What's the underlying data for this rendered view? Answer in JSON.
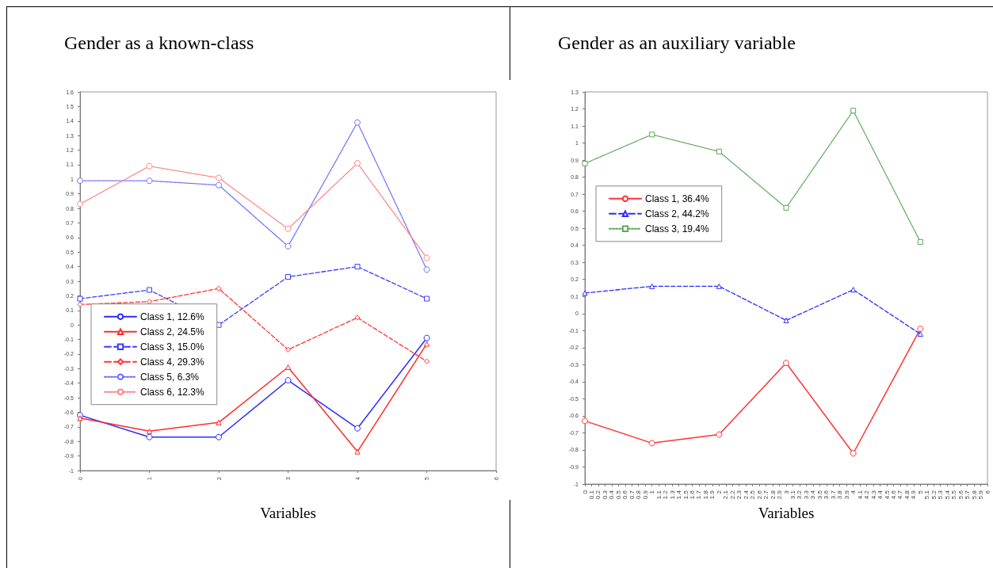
{
  "chart_data": [
    {
      "type": "line",
      "title": "Gender as a known-class",
      "xlabel": "Variables",
      "x": [
        0,
        1,
        2,
        3,
        4,
        5
      ],
      "xlim": [
        0,
        6
      ],
      "xticks": [
        0,
        1,
        2,
        3,
        4,
        5,
        6
      ],
      "ylim": [
        -1,
        1.6
      ],
      "yticks": [
        -1,
        -0.9,
        -0.8,
        -0.7,
        -0.6,
        -0.5,
        -0.4,
        -0.3,
        -0.2,
        -0.1,
        0,
        0.1,
        0.2,
        0.3,
        0.4,
        0.5,
        0.6,
        0.7,
        0.8,
        0.9,
        1,
        1.1,
        1.2,
        1.3,
        1.4,
        1.5,
        1.6
      ],
      "legend": "left",
      "series": [
        {
          "name": "Class 1, 12.6%",
          "color": "#2b2bff",
          "marker": "circle",
          "line_style": "solid",
          "values": [
            -0.62,
            -0.77,
            -0.77,
            -0.38,
            -0.71,
            -0.09
          ]
        },
        {
          "name": "Class 2, 24.5%",
          "color": "#ff2b2b",
          "marker": "triangle",
          "line_style": "solid",
          "values": [
            -0.64,
            -0.73,
            -0.67,
            -0.29,
            -0.87,
            -0.13
          ]
        },
        {
          "name": "Class 3, 15.0%",
          "color": "#3b3bff",
          "marker": "square",
          "line_style": "dashed",
          "values": [
            0.18,
            0.24,
            0.0,
            0.33,
            0.4,
            0.18
          ]
        },
        {
          "name": "Class 4, 29.3%",
          "color": "#ff3333",
          "marker": "diamond",
          "line_style": "dashed",
          "values": [
            0.14,
            0.16,
            0.25,
            -0.17,
            0.05,
            -0.25
          ]
        },
        {
          "name": "Class 5, 6.3%",
          "color": "#6a6aff",
          "marker": "circle",
          "line_style": "dotted",
          "values": [
            0.99,
            0.99,
            0.96,
            0.54,
            1.39,
            0.38
          ]
        },
        {
          "name": "Class 6, 12.3%",
          "color": "#ff7f7f",
          "marker": "circle",
          "line_style": "dotted",
          "values": [
            0.83,
            1.09,
            1.01,
            0.66,
            1.11,
            0.46
          ]
        }
      ]
    },
    {
      "type": "line",
      "title": "Gender as an auxiliary variable",
      "xlabel": "Variables",
      "x": [
        0,
        1,
        2,
        3,
        4,
        5
      ],
      "xlim": [
        0,
        6
      ],
      "xticks": [
        0,
        0.1,
        0.2,
        0.3,
        0.4,
        0.5,
        0.6,
        0.7,
        0.8,
        0.9,
        1,
        1.1,
        1.2,
        1.3,
        1.4,
        1.5,
        1.6,
        1.7,
        1.8,
        1.9,
        2,
        2.1,
        2.2,
        2.3,
        2.4,
        2.5,
        2.6,
        2.7,
        2.8,
        2.9,
        3,
        3.1,
        3.2,
        3.3,
        3.4,
        3.5,
        3.6,
        3.7,
        3.8,
        3.9,
        4,
        4.1,
        4.2,
        4.3,
        4.4,
        4.5,
        4.6,
        4.7,
        4.8,
        4.9,
        5,
        5.1,
        5.2,
        5.3,
        5.4,
        5.5,
        5.6,
        5.7,
        5.8,
        5.9,
        6
      ],
      "ylim": [
        -1,
        1.3
      ],
      "yticks": [
        -1,
        -0.9,
        -0.8,
        -0.7,
        -0.6,
        -0.5,
        -0.4,
        -0.3,
        -0.2,
        -0.1,
        0,
        0.1,
        0.2,
        0.3,
        0.4,
        0.5,
        0.6,
        0.7,
        0.8,
        0.9,
        1,
        1.1,
        1.2,
        1.3
      ],
      "legend": "top left",
      "series": [
        {
          "name": "Class 1, 36.4%",
          "color": "#ff3333",
          "marker": "circle",
          "line_style": "solid",
          "values": [
            -0.63,
            -0.76,
            -0.71,
            -0.29,
            -0.82,
            -0.09
          ]
        },
        {
          "name": "Class 2, 44.2%",
          "color": "#2b2bff",
          "marker": "triangle",
          "line_style": "dashed",
          "values": [
            0.12,
            0.16,
            0.16,
            -0.04,
            0.14,
            -0.12
          ]
        },
        {
          "name": "Class 3, 19.4%",
          "color": "#5aa85a",
          "marker": "square",
          "line_style": "dotted",
          "values": [
            0.88,
            1.05,
            0.95,
            0.62,
            1.19,
            0.42
          ]
        }
      ]
    }
  ]
}
